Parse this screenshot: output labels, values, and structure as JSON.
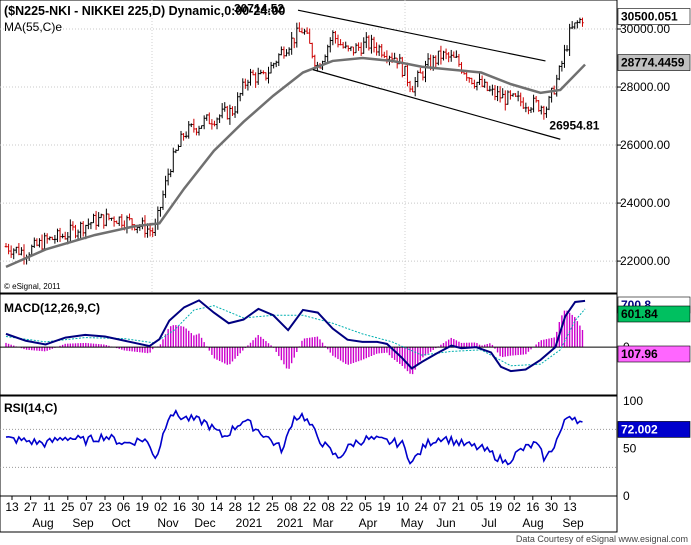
{
  "header": {
    "title": "($N225-NKI - NIKKEI 225,D) Dynamic,0:00-24:00",
    "ma_label": "MA(55,C)e",
    "copyright": "© eSignal, 2011",
    "footer": "Data Courtesy of eSignal  www.esignal.com"
  },
  "colors": {
    "price_up": "#000000",
    "price_down": "#cc0000",
    "ma": "#707070",
    "channel": "#000000",
    "macd": "#000080",
    "signal": "#00b0b0",
    "hist": "#cc00cc",
    "rsi": "#0000cc",
    "last_price_bg": "#ffffff",
    "ma_value_bg": "#c0c0c0",
    "macd_value_bg": "#00c060",
    "hist_value_bg": "#ff66ff",
    "rsi_value_bg": "#0000cc"
  },
  "chart_data": [
    {
      "type": "candlestick",
      "name": "main",
      "title": "($N225-NKI - NIKKEI 225,D) Dynamic,0:00-24:00",
      "ylim": [
        20900,
        31000
      ],
      "y_ticks": [
        22000,
        24000,
        26000,
        28000,
        30000
      ],
      "y_tick_labels": [
        "22000.00",
        "24000.00",
        "26000.00",
        "28000.00",
        "30000.00"
      ],
      "x_ticks": [
        "13",
        "27",
        "11",
        "25",
        "07",
        "23",
        "06",
        "19",
        "02",
        "16",
        "30",
        "14",
        "28",
        "12",
        "25",
        "08",
        "22",
        "08",
        "22",
        "05",
        "19",
        "10",
        "24",
        "07",
        "21",
        "05",
        "19",
        "02",
        "16",
        "30",
        "13"
      ],
      "month_labels": [
        "Aug",
        "Sep",
        "Oct",
        "Nov",
        "Dec",
        "2021",
        "2021",
        "Mar",
        "Apr",
        "May",
        "Jun",
        "Jul",
        "Aug",
        "Sep"
      ],
      "series": [
        {
          "name": "NIKKEI 225",
          "x": [
            0,
            20,
            40,
            60,
            70,
            90,
            110,
            130,
            150,
            165,
            180,
            200,
            230,
            245,
            260,
            280,
            300,
            315,
            330,
            345,
            365,
            380,
            395,
            410,
            425,
            440,
            455,
            470,
            490,
            505,
            520,
            535,
            547,
            560,
            570,
            585
          ],
          "close": [
            22500,
            22300,
            22700,
            22900,
            23100,
            23400,
            23500,
            23300,
            23000,
            25200,
            26400,
            26800,
            27200,
            28400,
            28300,
            29300,
            30000,
            28700,
            29800,
            29200,
            29500,
            29300,
            29000,
            28000,
            28700,
            29100,
            28900,
            28300,
            27800,
            27600,
            27500,
            27400,
            27300,
            28600,
            29900,
            30500
          ]
        },
        {
          "name": "MA(55,C)e",
          "x": [
            0,
            40,
            90,
            130,
            155,
            180,
            210,
            240,
            270,
            300,
            330,
            360,
            390,
            420,
            450,
            480,
            510,
            540,
            560,
            585
          ],
          "y": [
            21800,
            22400,
            22900,
            23200,
            23300,
            24500,
            25800,
            26800,
            27700,
            28500,
            28900,
            29000,
            28900,
            28700,
            28600,
            28500,
            28100,
            27800,
            27900,
            28774.4459
          ]
        }
      ],
      "channel_upper": [
        [
          295,
          30650
        ],
        [
          545,
          28900
        ]
      ],
      "channel_lower": [
        [
          310,
          28600
        ],
        [
          560,
          26200
        ]
      ],
      "annotations": [
        {
          "text": "30714.52",
          "x": 295,
          "y": 30714.52
        },
        {
          "text": "26954.81",
          "x": 547,
          "y": 26954.81
        }
      ],
      "last_price_label": "30500.051",
      "ma_value_label": "28774.4459"
    },
    {
      "type": "line",
      "name": "MACD",
      "title": "MACD(12,26,9,C)",
      "ylim": [
        -900,
        1000
      ],
      "y_tick_labels": [
        "0"
      ],
      "series": [
        {
          "name": "MACD",
          "x": [
            0,
            20,
            40,
            60,
            80,
            100,
            120,
            145,
            155,
            165,
            180,
            195,
            210,
            225,
            240,
            255,
            270,
            285,
            300,
            315,
            330,
            345,
            360,
            375,
            385,
            400,
            410,
            420,
            435,
            450,
            460,
            475,
            490,
            500,
            510,
            525,
            540,
            555,
            565,
            575,
            585
          ],
          "y": [
            250,
            120,
            50,
            180,
            230,
            200,
            120,
            20,
            150,
            500,
            750,
            880,
            650,
            450,
            520,
            720,
            600,
            320,
            700,
            650,
            350,
            140,
            100,
            100,
            60,
            -200,
            -400,
            -280,
            -120,
            30,
            -20,
            0,
            -100,
            -370,
            -450,
            -420,
            -240,
            0,
            580,
            850,
            870
          ]
        },
        {
          "name": "Signal",
          "x": [
            0,
            40,
            80,
            120,
            150,
            170,
            190,
            210,
            240,
            270,
            300,
            330,
            360,
            390,
            420,
            450,
            480,
            510,
            540,
            560,
            575,
            585
          ],
          "y": [
            200,
            100,
            180,
            160,
            80,
            320,
            700,
            780,
            550,
            600,
            600,
            450,
            250,
            100,
            -150,
            -80,
            -50,
            -350,
            -320,
            -50,
            500,
            720
          ]
        }
      ],
      "value_labels": [
        "700.8",
        "601.84",
        "107.96"
      ]
    },
    {
      "type": "line",
      "name": "RSI",
      "title": "RSI(14,C)",
      "ylim": [
        0,
        105
      ],
      "y_ticks": [
        0,
        50,
        100
      ],
      "y_tick_labels": [
        "0",
        "50",
        "100"
      ],
      "series": [
        {
          "name": "RSI",
          "x": [
            0,
            20,
            40,
            60,
            80,
            100,
            120,
            140,
            152,
            165,
            180,
            200,
            220,
            240,
            260,
            280,
            290,
            300,
            320,
            335,
            350,
            365,
            380,
            400,
            410,
            425,
            440,
            460,
            480,
            490,
            505,
            520,
            535,
            545,
            555,
            568,
            575,
            585
          ],
          "y": [
            60,
            58,
            55,
            62,
            58,
            63,
            55,
            60,
            40,
            88,
            82,
            78,
            62,
            80,
            65,
            48,
            82,
            85,
            55,
            40,
            55,
            60,
            58,
            55,
            35,
            55,
            62,
            55,
            50,
            45,
            35,
            48,
            55,
            38,
            56,
            85,
            83,
            72.002
          ]
        }
      ],
      "value_label": "72.002"
    }
  ]
}
